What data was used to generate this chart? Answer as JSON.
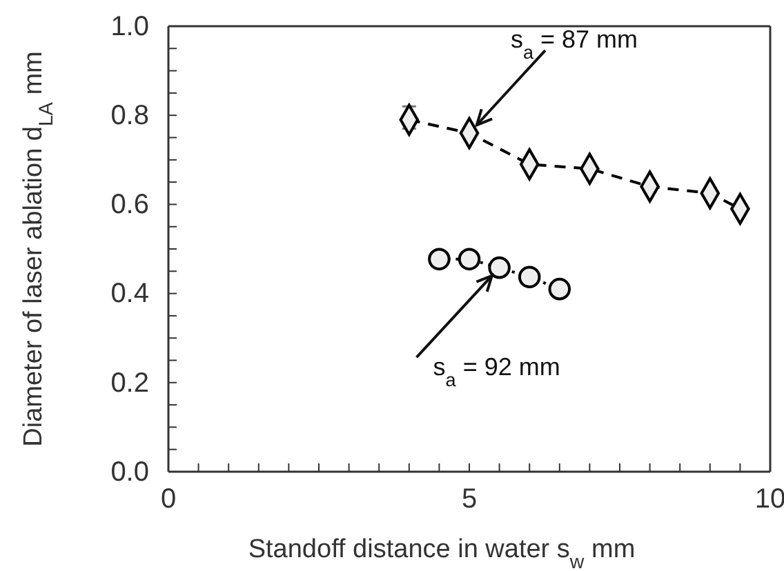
{
  "chart_data": {
    "type": "line",
    "xlabel": "Standoff distance in water s$_{w}$ mm",
    "ylabel": "Diameter of laser ablation d$_{LA}$ mm",
    "xlim": [
      0,
      10
    ],
    "xticks": [
      0,
      {
        "value": 0.5,
        "label": null
      },
      {
        "value": 1,
        "label": null
      },
      {
        "value": 1.5,
        "label": null
      },
      {
        "value": 2,
        "label": null
      },
      {
        "value": 2.5,
        "label": null
      },
      {
        "value": 3,
        "label": null
      },
      {
        "value": 3.5,
        "label": null
      },
      {
        "value": 4,
        "label": null
      },
      {
        "value": 4.5,
        "label": null
      },
      5,
      {
        "value": 5.5,
        "label": null
      },
      {
        "value": 6,
        "label": null
      },
      {
        "value": 6.5,
        "label": null
      },
      {
        "value": 7,
        "label": null
      },
      {
        "value": 7.5,
        "label": null
      },
      {
        "value": 8,
        "label": null
      },
      {
        "value": 8.5,
        "label": null
      },
      {
        "value": 9,
        "label": null
      },
      {
        "value": 9.5,
        "label": null
      },
      10
    ],
    "ylim": [
      0,
      1
    ],
    "yticks": [
      {
        "value": 0,
        "label": "0.0"
      },
      {
        "value": 0.05,
        "label": null
      },
      {
        "value": 0.1,
        "label": null
      },
      {
        "value": 0.15,
        "label": null
      },
      {
        "value": 0.2,
        "label": "0.2"
      },
      {
        "value": 0.25,
        "label": null
      },
      {
        "value": 0.3,
        "label": null
      },
      {
        "value": 0.35,
        "label": null
      },
      {
        "value": 0.4,
        "label": "0.4"
      },
      {
        "value": 0.45,
        "label": null
      },
      {
        "value": 0.5,
        "label": null
      },
      {
        "value": 0.55,
        "label": null
      },
      {
        "value": 0.6,
        "label": "0.6"
      },
      {
        "value": 0.65,
        "label": null
      },
      {
        "value": 0.7,
        "label": null
      },
      {
        "value": 0.75,
        "label": null
      },
      {
        "value": 0.8,
        "label": "0.8"
      },
      {
        "value": 0.85,
        "label": null
      },
      {
        "value": 0.9,
        "label": null
      },
      {
        "value": 0.95,
        "label": null
      },
      {
        "value": 1,
        "label": "1.0"
      }
    ],
    "grid": false,
    "series": [
      {
        "color": "#000000",
        "marker": "diamond",
        "line_style": "dashed",
        "x": [
          4,
          5,
          6,
          7,
          8,
          9,
          9.5
        ],
        "values": [
          0.79,
          0.76,
          0.69,
          0.68,
          0.64,
          0.625,
          0.59
        ],
        "errors": [
          [
            0.77,
            0.82
          ],
          null,
          null,
          null,
          null,
          null,
          null
        ]
      },
      {
        "color": "#000000",
        "marker": "circle",
        "line_style": "dotted",
        "x": [
          4.5,
          5,
          5.5,
          6,
          6.5
        ],
        "values": [
          0.477,
          0.477,
          0.458,
          0.437,
          0.41
        ]
      }
    ],
    "annotations": [
      {
        "text": "s$_{a}$ = 87 mm",
        "x": 5,
        "y": 0.76
      },
      {
        "text": "s$_{a}$ = 92 mm",
        "x": 5.5,
        "y": 0.458
      }
    ]
  }
}
